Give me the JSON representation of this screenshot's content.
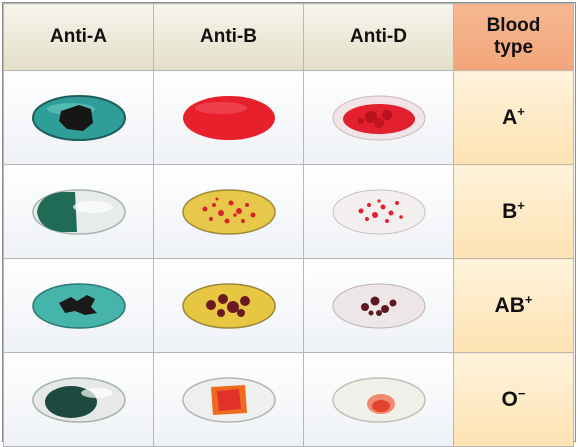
{
  "headers": {
    "anti_a": "Anti-A",
    "anti_b": "Anti-B",
    "anti_d": "Anti-D",
    "blood_type_line1": "Blood",
    "blood_type_line2": "type"
  },
  "rows": [
    {
      "base": "A",
      "sign": "+",
      "anti_a": "agglutinated",
      "anti_b": "no agglutination",
      "anti_d": "agglutinated"
    },
    {
      "base": "B",
      "sign": "+",
      "anti_a": "no agglutination",
      "anti_b": "agglutinated",
      "anti_d": "agglutinated"
    },
    {
      "base": "AB",
      "sign": "+",
      "anti_a": "agglutinated",
      "anti_b": "agglutinated",
      "anti_d": "agglutinated"
    },
    {
      "base": "O",
      "sign": "−",
      "anti_a": "no agglutination",
      "anti_b": "no agglutination",
      "anti_d": "no agglutination"
    }
  ],
  "colors": {
    "anti_a_reagent": "#3aa9a2",
    "anti_b_reagent": "#e9c43f",
    "blood_red": "#e3202e",
    "clump_dark": "#5b1a20",
    "header_reagent": "#e4dfc8",
    "header_type": "#f3a57a",
    "type_cell": "#fde2b2"
  }
}
